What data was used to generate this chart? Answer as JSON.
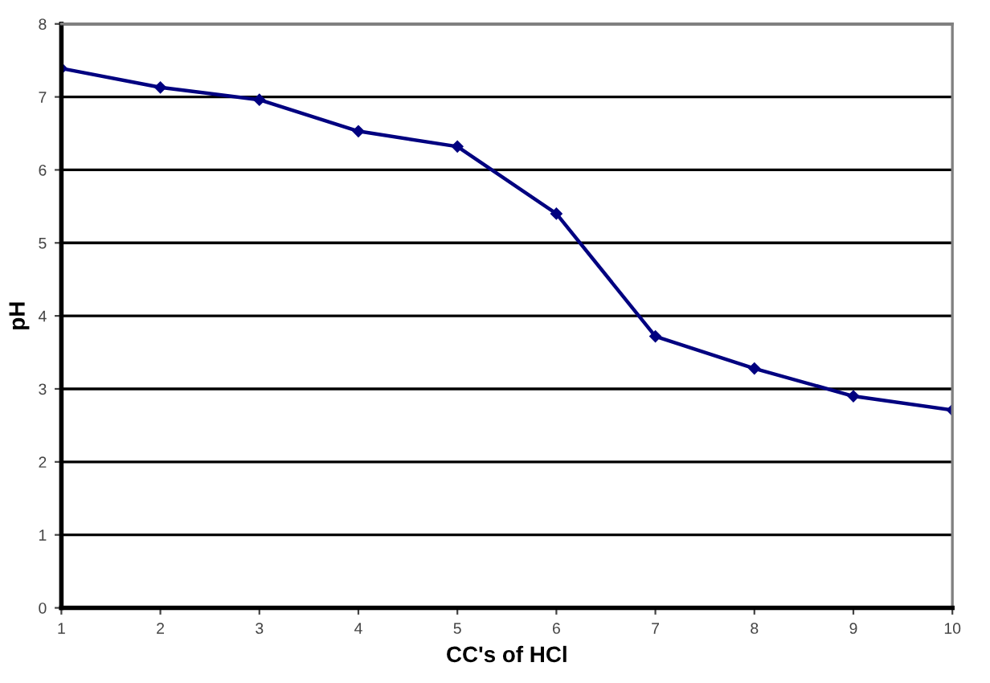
{
  "chart_data": {
    "type": "line",
    "xlabel": "CC's of HCl",
    "ylabel": "pH",
    "categories": [
      "1",
      "2",
      "3",
      "4",
      "5",
      "6",
      "7",
      "8",
      "9",
      "10"
    ],
    "series": [
      {
        "color": "#000080",
        "values": [
          7.39,
          7.13,
          6.96,
          6.53,
          6.32,
          5.4,
          3.72,
          3.28,
          2.9,
          2.71
        ]
      }
    ],
    "ylim": [
      0,
      8
    ],
    "yticks": [
      0,
      1,
      2,
      3,
      4,
      5,
      6,
      7,
      8
    ],
    "grid": "y",
    "marker": "diamond",
    "line_style": "solid"
  }
}
